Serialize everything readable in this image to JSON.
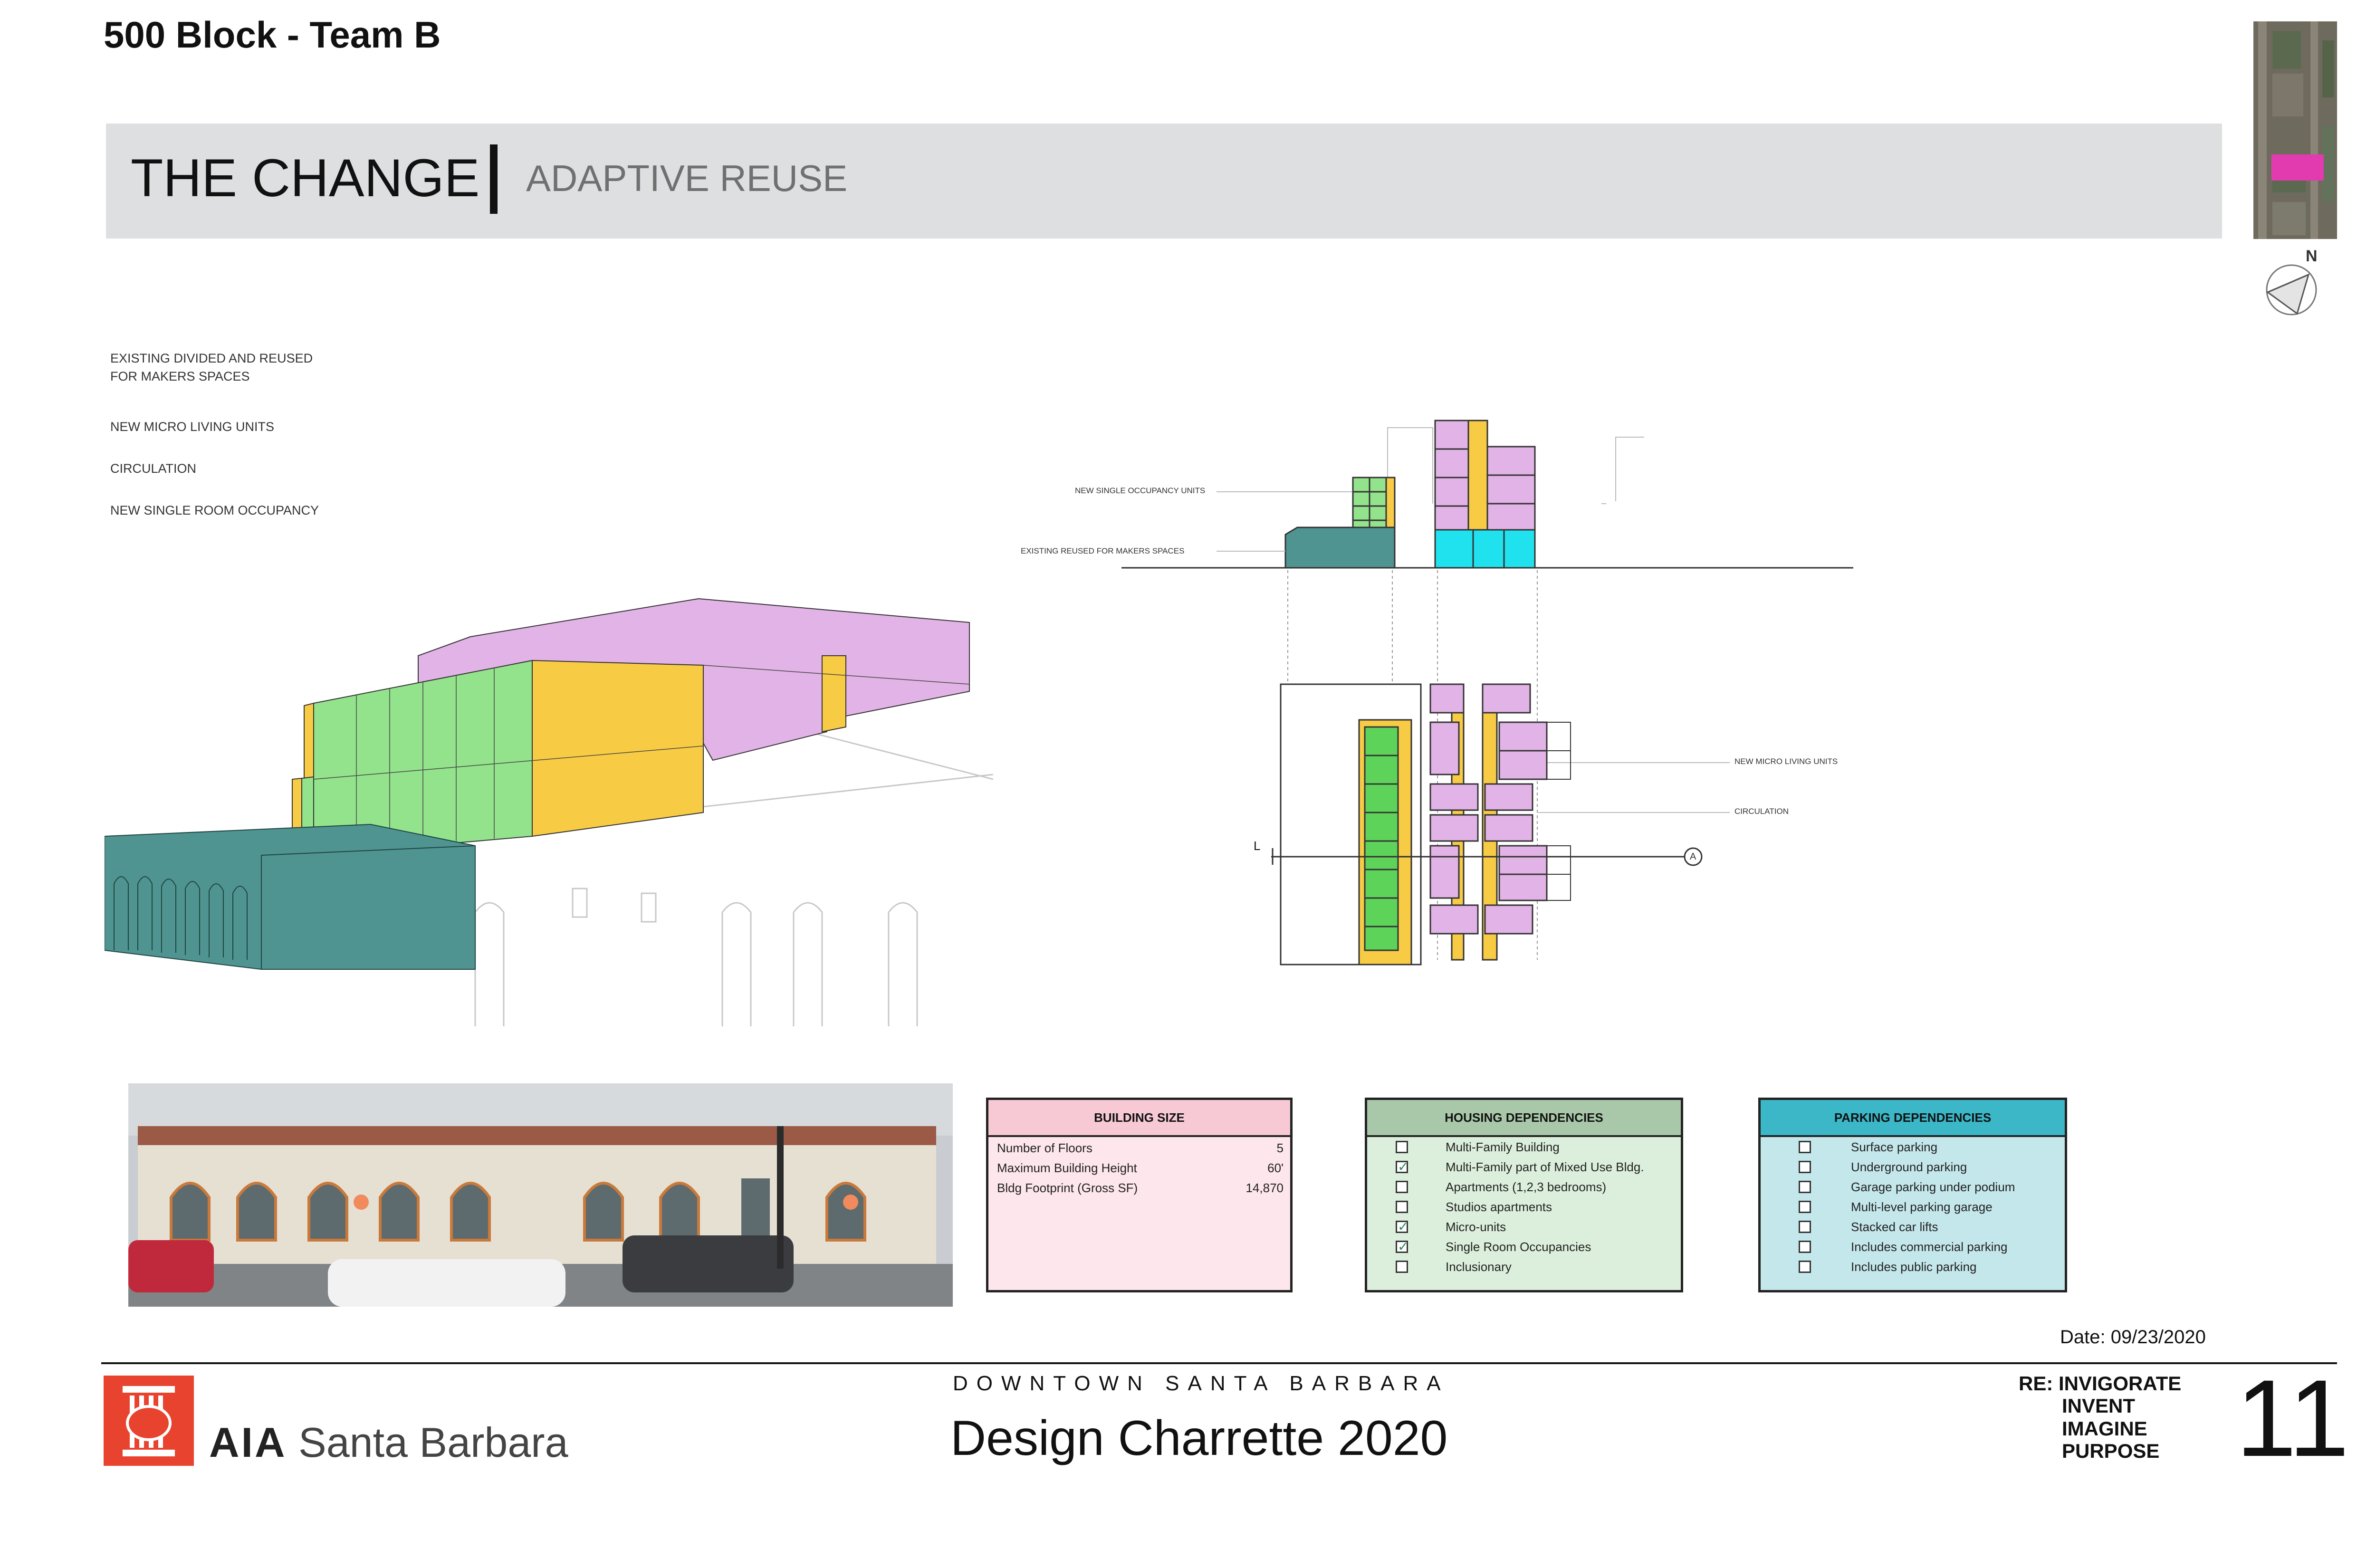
{
  "header": {
    "team_title": "500 Block - Team B",
    "banner_title": "THE CHANGE",
    "banner_subtitle": "ADAPTIVE REUSE"
  },
  "legend": {
    "items": [
      "EXISTING DIVIDED AND REUSED",
      "FOR MAKERS SPACES",
      "NEW MICRO LIVING UNITS",
      "CIRCULATION",
      "NEW SINGLE ROOM OCCUPANCY"
    ]
  },
  "section_annotations": {
    "single_occupancy": "NEW SINGLE OCCUPANCY UNITS",
    "makers": "EXISTING REUSED FOR MAKERS SPACES",
    "micro_living": "NEW MICRO LIVING UNITS",
    "circulation": "CIRCULATION",
    "section_marker": "A",
    "section_tick": "L"
  },
  "colors": {
    "makers_teal": "#4f9490",
    "micro_pink": "#e2b3e6",
    "circulation_yellow": "#f8cb45",
    "sro_green": "#93e28c",
    "parking_cyan": "#1fe2ee",
    "banner_gray": "#dedfe0"
  },
  "building_size": {
    "title": "BUILDING SIZE",
    "rows": [
      {
        "label": "Number of Floors",
        "value": "5"
      },
      {
        "label": "Maximum Building Height",
        "value": "60'"
      },
      {
        "label": "Bldg Footprint (Gross SF)",
        "value": "14,870"
      }
    ]
  },
  "housing": {
    "title": "HOUSING DEPENDENCIES",
    "items": [
      {
        "label": "Multi-Family Building",
        "checked": false
      },
      {
        "label": "Multi-Family part of Mixed Use Bldg.",
        "checked": true
      },
      {
        "label": "Apartments (1,2,3 bedrooms)",
        "checked": false
      },
      {
        "label": "Studios apartments",
        "checked": false
      },
      {
        "label": "Micro-units",
        "checked": true
      },
      {
        "label": "Single Room Occupancies",
        "checked": true
      },
      {
        "label": "Inclusionary",
        "checked": false
      }
    ]
  },
  "parking": {
    "title": "PARKING DEPENDENCIES",
    "items": [
      {
        "label": "Surface parking",
        "checked": false
      },
      {
        "label": "Underground parking",
        "checked": false
      },
      {
        "label": "Garage parking under podium",
        "checked": false
      },
      {
        "label": "Multi-level parking garage",
        "checked": false
      },
      {
        "label": "Stacked car lifts",
        "checked": false
      },
      {
        "label": "Includes commercial parking",
        "checked": false
      },
      {
        "label": "Includes public parking",
        "checked": false
      }
    ]
  },
  "footer": {
    "date": "Date: 09/23/2020",
    "org_abbr": "AIA",
    "org_name": "Santa Barbara",
    "downtown": "DOWNTOWN SANTA BARBARA",
    "event": "Design Charrette 2020",
    "re_lines": [
      "RE: INVIGORATE",
      "INVENT",
      "IMAGINE",
      "PURPOSE"
    ],
    "page_number": "11"
  }
}
